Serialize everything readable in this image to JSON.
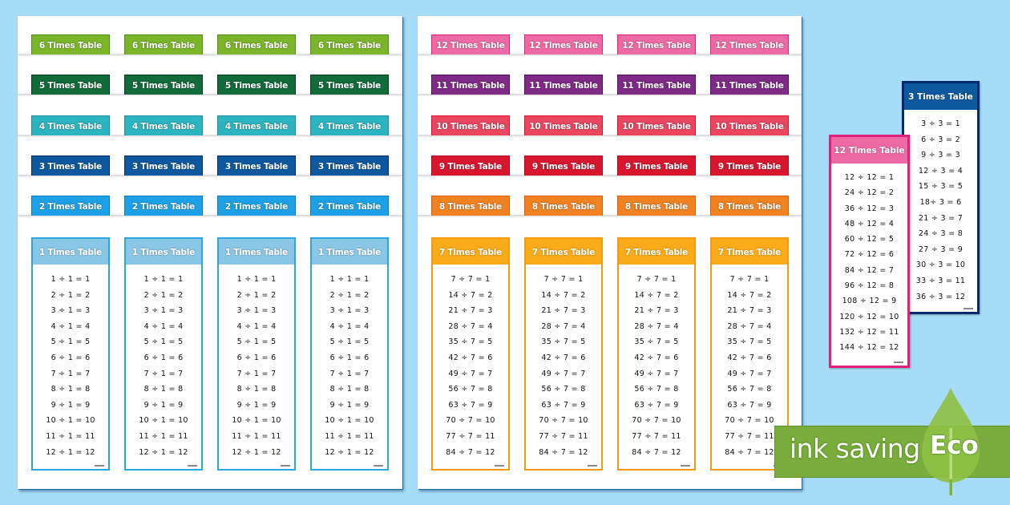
{
  "operator": "÷",
  "left_sheet": {
    "stacked_tabs": [
      {
        "label": "6 Times Table",
        "fill": "#7ab52a",
        "border": "#4f8f14"
      },
      {
        "label": "5 Times Table",
        "fill": "#116b3a",
        "border": "#063b1e"
      },
      {
        "label": "4 Times Table",
        "fill": "#2cb4c0",
        "border": "#1a8f9a"
      },
      {
        "label": "3 Times Table",
        "fill": "#0e58a0",
        "border": "#062a6e"
      },
      {
        "label": "2 Times Table",
        "fill": "#1ea0e6",
        "border": "#0a7cc0"
      }
    ],
    "card": {
      "label": "1 Times Table",
      "fill": "#8ac6e6",
      "border": "#2aa6e0",
      "rows": [
        "1 ÷ 1 = 1",
        "2 ÷ 1 = 2",
        "3 ÷ 1 = 3",
        "4 ÷ 1 = 4",
        "5 ÷ 1 = 5",
        "6 ÷ 1 = 6",
        "7 ÷ 1 = 7",
        "8 ÷ 1 = 8",
        "9 ÷ 1 = 9",
        "10 ÷ 1 = 10",
        "11 ÷ 1 = 11",
        "12 ÷ 1 = 12"
      ]
    }
  },
  "right_sheet": {
    "stacked_tabs": [
      {
        "label": "12 Times Table",
        "fill": "#ee6aa4",
        "border": "#e0207a"
      },
      {
        "label": "11 Times Table",
        "fill": "#7e2a86",
        "border": "#52105a"
      },
      {
        "label": "10 Times Table",
        "fill": "#ea4660",
        "border": "#e0102e"
      },
      {
        "label": "9 Times Table",
        "fill": "#d8162e",
        "border": "#b0081c"
      },
      {
        "label": "8 Times Table",
        "fill": "#f08222",
        "border": "#dc5a0e"
      }
    ],
    "card": {
      "label": "7 Times Table",
      "fill": "#f9ab1a",
      "border": "#f39a10",
      "rows": [
        "7 ÷ 7 = 1",
        "14 ÷ 7 = 2",
        "21 ÷ 7 = 3",
        "28 ÷ 7 = 4",
        "35 ÷ 7 = 5",
        "42 ÷ 7 = 6",
        "49 ÷ 7 = 7",
        "56 ÷ 7 = 8",
        "63 ÷ 7 = 9",
        "70 ÷ 7 = 10",
        "77 ÷ 7 = 11",
        "84 ÷ 7 = 12"
      ]
    }
  },
  "preview_cards": {
    "three": {
      "label": "3 Times Table",
      "fill": "#0e58a0",
      "border": "#062a6e",
      "rows": [
        "3 ÷ 3 = 1",
        "6 ÷ 3 = 2",
        "9 ÷ 3 = 3",
        "12 ÷ 3 = 4",
        "15 ÷ 3 = 5",
        "18÷ 3 = 6",
        "21 ÷ 3 = 7",
        "24 ÷ 3 = 8",
        "27 ÷ 3 = 9",
        "30 ÷ 3 = 10",
        "33 ÷ 3 = 11",
        "36 ÷ 3 = 12"
      ]
    },
    "twelve": {
      "label": "12 Times Table",
      "fill": "#ee6aa4",
      "border": "#e0207a",
      "rows": [
        "12 ÷ 12 = 1",
        "24 ÷ 12 = 2",
        "36 ÷ 12 = 3",
        "48 ÷ 12 = 4",
        "60 ÷ 12 = 5",
        "72 ÷ 12 = 6",
        "84 ÷ 12 = 7",
        "96 ÷ 12 = 8",
        "108 ÷ 12 = 9",
        "120 ÷ 12 = 10",
        "132 ÷ 12 = 11",
        "144 ÷ 12 = 12"
      ]
    }
  },
  "eco_badge": {
    "label": "ink saving",
    "word": "Eco",
    "banner_color": "#7aad3e",
    "leaf_color": "#8fc045"
  }
}
